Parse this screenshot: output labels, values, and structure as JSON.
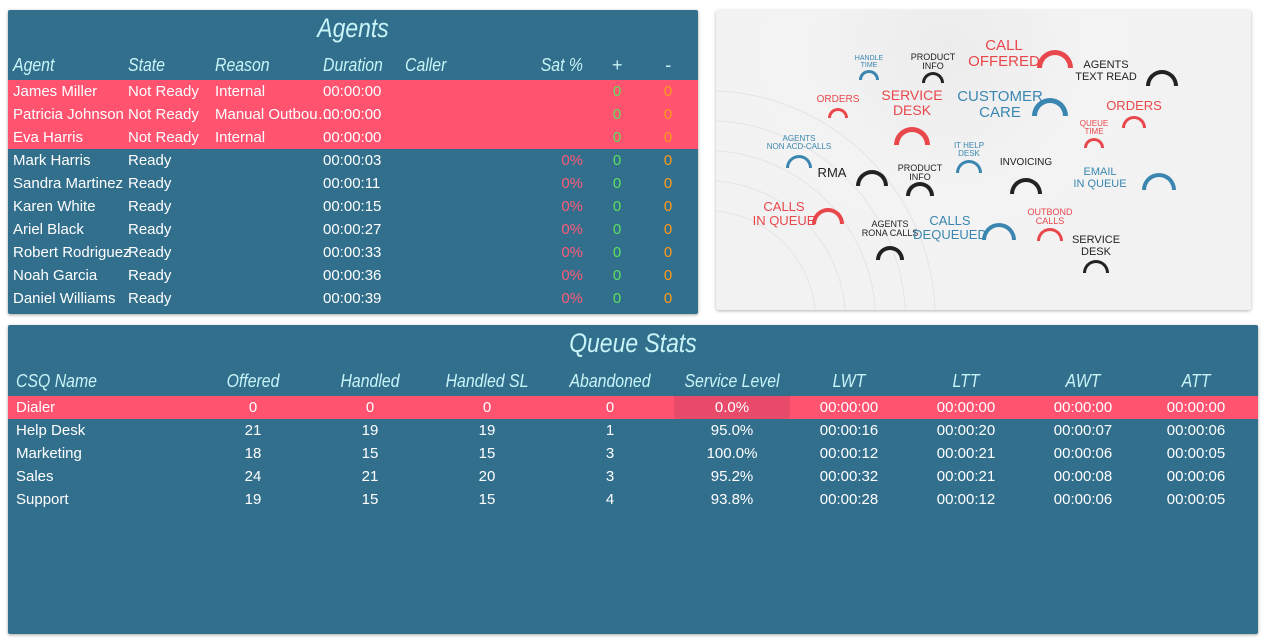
{
  "agents": {
    "title": "Agents",
    "columns": [
      "Agent",
      "State",
      "Reason",
      "Duration",
      "Caller",
      "Sat %",
      "+",
      "-"
    ],
    "rows": [
      {
        "agent": "James Miller",
        "state": "Not Ready",
        "reason": "Internal",
        "duration": "00:00:00",
        "caller": "",
        "sat": "",
        "plus": "0",
        "minus": "0",
        "alert": true
      },
      {
        "agent": "Patricia Johnson",
        "state": "Not Ready",
        "reason": "Manual Outbou…",
        "duration": "00:00:00",
        "caller": "",
        "sat": "",
        "plus": "0",
        "minus": "0",
        "alert": true
      },
      {
        "agent": "Eva Harris",
        "state": "Not Ready",
        "reason": "Internal",
        "duration": "00:00:00",
        "caller": "",
        "sat": "",
        "plus": "0",
        "minus": "0",
        "alert": true
      },
      {
        "agent": "Mark Harris",
        "state": "Ready",
        "reason": "",
        "duration": "00:00:03",
        "caller": "",
        "sat": "0%",
        "plus": "0",
        "minus": "0"
      },
      {
        "agent": "Sandra Martinez",
        "state": "Ready",
        "reason": "",
        "duration": "00:00:11",
        "caller": "",
        "sat": "0%",
        "plus": "0",
        "minus": "0"
      },
      {
        "agent": "Karen White",
        "state": "Ready",
        "reason": "",
        "duration": "00:00:15",
        "caller": "",
        "sat": "0%",
        "plus": "0",
        "minus": "0"
      },
      {
        "agent": "Ariel Black",
        "state": "Ready",
        "reason": "",
        "duration": "00:00:27",
        "caller": "",
        "sat": "0%",
        "plus": "0",
        "minus": "0"
      },
      {
        "agent": "Robert Rodriguez",
        "state": "Ready",
        "reason": "",
        "duration": "00:00:33",
        "caller": "",
        "sat": "0%",
        "plus": "0",
        "minus": "0"
      },
      {
        "agent": "Noah Garcia",
        "state": "Ready",
        "reason": "",
        "duration": "00:00:36",
        "caller": "",
        "sat": "0%",
        "plus": "0",
        "minus": "0"
      },
      {
        "agent": "Daniel Williams",
        "state": "Ready",
        "reason": "",
        "duration": "00:00:39",
        "caller": "",
        "sat": "0%",
        "plus": "0",
        "minus": "0"
      }
    ]
  },
  "image_panel": {
    "gauges": [
      {
        "label": "HANDLE\nTIME",
        "color": "#3a86b0"
      },
      {
        "label": "PRODUCT\nINFO",
        "color": "#222222"
      },
      {
        "label": "CALL\nOFFERED",
        "color": "#e8474c"
      },
      {
        "label": "AGENTS\nTEXT READ",
        "color": "#222222"
      },
      {
        "label": "ORDERS",
        "color": "#e8474c"
      },
      {
        "label": "SERVICE\nDESK",
        "color": "#e8474c"
      },
      {
        "label": "CUSTOMER\nCARE",
        "color": "#3a86b0"
      },
      {
        "label": "ORDERS",
        "color": "#e8474c"
      },
      {
        "label": "QUEUE\nTIME",
        "color": "#e8474c"
      },
      {
        "label": "AGENTS\nNON ACD-CALLS",
        "color": "#3a86b0"
      },
      {
        "label": "RMA",
        "color": "#222222"
      },
      {
        "label": "PRODUCT\nINFO",
        "color": "#222222"
      },
      {
        "label": "IT HELP\nDESK",
        "color": "#3a86b0"
      },
      {
        "label": "INVOICING",
        "color": "#222222"
      },
      {
        "label": "EMAIL\nIN QUEUE",
        "color": "#3a86b0"
      },
      {
        "label": "CALLS\nIN QUEUE",
        "color": "#e8474c"
      },
      {
        "label": "AGENTS\nRONA CALLS",
        "color": "#222222"
      },
      {
        "label": "CALLS\nDEQUEUED",
        "color": "#3a86b0"
      },
      {
        "label": "OUTBOND\nCALLS",
        "color": "#e8474c"
      },
      {
        "label": "SERVICE\nDESK",
        "color": "#222222"
      }
    ]
  },
  "queue": {
    "title": "Queue Stats",
    "columns": [
      "CSQ Name",
      "Offered",
      "Handled",
      "Handled SL",
      "Abandoned",
      "Service Level",
      "LWT",
      "LTT",
      "AWT",
      "ATT"
    ],
    "rows": [
      {
        "cells": [
          "Dialer",
          "0",
          "0",
          "0",
          "0",
          "0.0%",
          "00:00:00",
          "00:00:00",
          "00:00:00",
          "00:00:00"
        ],
        "alert": true
      },
      {
        "cells": [
          "Help Desk",
          "21",
          "19",
          "19",
          "1",
          "95.0%",
          "00:00:16",
          "00:00:20",
          "00:00:07",
          "00:00:06"
        ]
      },
      {
        "cells": [
          "Marketing",
          "18",
          "15",
          "15",
          "3",
          "100.0%",
          "00:00:12",
          "00:00:21",
          "00:00:06",
          "00:00:05"
        ]
      },
      {
        "cells": [
          "Sales",
          "24",
          "21",
          "20",
          "3",
          "95.2%",
          "00:00:32",
          "00:00:21",
          "00:00:08",
          "00:00:06"
        ]
      },
      {
        "cells": [
          "Support",
          "19",
          "15",
          "15",
          "4",
          "93.8%",
          "00:00:28",
          "00:00:12",
          "00:00:06",
          "00:00:05"
        ]
      }
    ]
  },
  "colors": {
    "panel": "#326f8c",
    "alert": "#ff5370",
    "header_text": "#c8f4f8"
  }
}
